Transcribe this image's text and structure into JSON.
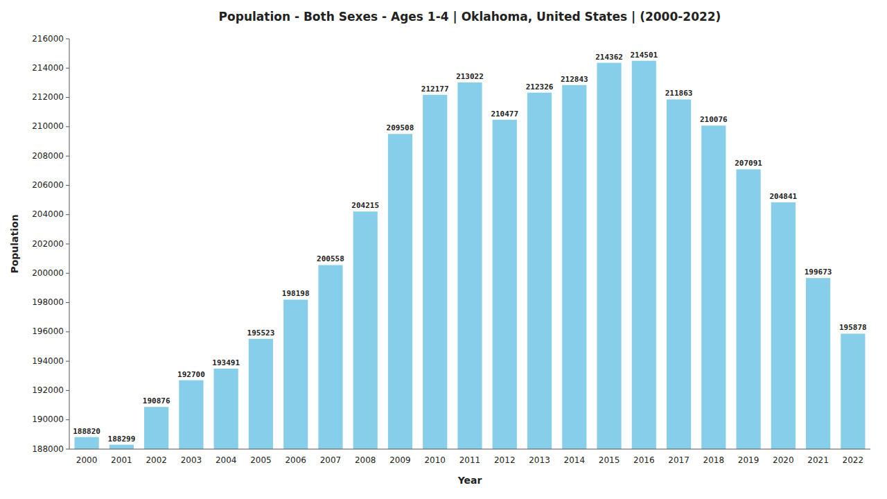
{
  "chart_data": {
    "type": "bar",
    "title": "Population - Both Sexes - Ages 1-4 | Oklahoma, United States |  (2000-2022)",
    "xlabel": "Year",
    "ylabel": "Population",
    "categories": [
      "2000",
      "2001",
      "2002",
      "2003",
      "2004",
      "2005",
      "2006",
      "2007",
      "2008",
      "2009",
      "2010",
      "2011",
      "2012",
      "2013",
      "2014",
      "2015",
      "2016",
      "2017",
      "2018",
      "2019",
      "2020",
      "2021",
      "2022"
    ],
    "values": [
      188820,
      188299,
      190876,
      192700,
      193491,
      195523,
      198198,
      200558,
      204215,
      209508,
      212177,
      213022,
      210477,
      212326,
      212843,
      214362,
      214501,
      211863,
      210076,
      207091,
      204841,
      199673,
      195878
    ],
    "color": "#87CEEB",
    "ylim": [
      188000,
      216000
    ],
    "yticks": [
      188000,
      190000,
      192000,
      194000,
      196000,
      198000,
      200000,
      202000,
      204000,
      206000,
      208000,
      210000,
      212000,
      214000,
      216000
    ],
    "grid": false,
    "data_labels": true
  }
}
